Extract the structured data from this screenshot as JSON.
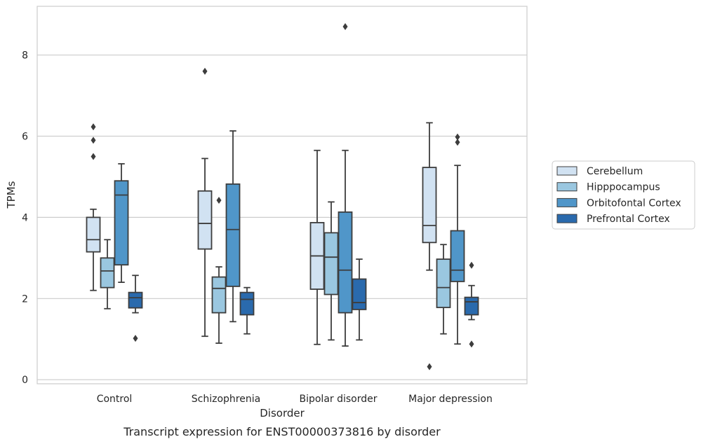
{
  "chart_data": {
    "type": "box",
    "caption": "Transcript expression for ENST00000373816 by disorder",
    "xlabel": "Disorder",
    "ylabel": "TPMs",
    "ylim": [
      -0.1,
      9.2
    ],
    "yticks": [
      0,
      2,
      4,
      6,
      8
    ],
    "grid": true,
    "legend_position": "right",
    "categories": [
      "Control",
      "Schizophrenia",
      "Bipolar disorder",
      "Major depression"
    ],
    "series": [
      {
        "name": "Cerebellum",
        "color": "#d1e2f2",
        "boxes": [
          {
            "min": 2.2,
            "q1": 3.15,
            "median": 3.45,
            "q3": 4.0,
            "max": 4.2,
            "outliers": [
              5.5,
              5.9,
              6.23
            ]
          },
          {
            "min": 1.07,
            "q1": 3.22,
            "median": 3.85,
            "q3": 4.65,
            "max": 5.45,
            "outliers": [
              7.6
            ]
          },
          {
            "min": 0.87,
            "q1": 2.23,
            "median": 3.05,
            "q3": 3.87,
            "max": 5.65,
            "outliers": []
          },
          {
            "min": 2.7,
            "q1": 3.38,
            "median": 3.8,
            "q3": 5.23,
            "max": 6.33,
            "outliers": [
              0.32
            ]
          }
        ]
      },
      {
        "name": "Hipppocampus",
        "color": "#9ac7e0",
        "boxes": [
          {
            "min": 1.75,
            "q1": 2.27,
            "median": 2.68,
            "q3": 3.0,
            "max": 3.45,
            "outliers": []
          },
          {
            "min": 0.9,
            "q1": 1.65,
            "median": 2.25,
            "q3": 2.53,
            "max": 2.78,
            "outliers": [
              4.42
            ]
          },
          {
            "min": 0.98,
            "q1": 2.1,
            "median": 3.02,
            "q3": 3.62,
            "max": 4.38,
            "outliers": []
          },
          {
            "min": 1.13,
            "q1": 1.78,
            "median": 2.27,
            "q3": 2.97,
            "max": 3.33,
            "outliers": []
          }
        ]
      },
      {
        "name": "Orbitofontal Cortex",
        "color": "#5096c9",
        "boxes": [
          {
            "min": 2.4,
            "q1": 2.83,
            "median": 4.55,
            "q3": 4.9,
            "max": 5.32,
            "outliers": []
          },
          {
            "min": 1.43,
            "q1": 2.3,
            "median": 3.7,
            "q3": 4.82,
            "max": 6.13,
            "outliers": []
          },
          {
            "min": 0.83,
            "q1": 1.65,
            "median": 2.7,
            "q3": 4.13,
            "max": 5.65,
            "outliers": [
              8.7
            ]
          },
          {
            "min": 0.88,
            "q1": 2.42,
            "median": 2.7,
            "q3": 3.67,
            "max": 5.28,
            "outliers": [
              5.85,
              5.98
            ]
          }
        ]
      },
      {
        "name": "Prefrontal Cortex",
        "color": "#2a6aad",
        "boxes": [
          {
            "min": 1.65,
            "q1": 1.77,
            "median": 2.02,
            "q3": 2.15,
            "max": 2.57,
            "outliers": [
              1.02
            ]
          },
          {
            "min": 1.13,
            "q1": 1.6,
            "median": 1.98,
            "q3": 2.15,
            "max": 2.27,
            "outliers": []
          },
          {
            "min": 0.98,
            "q1": 1.73,
            "median": 1.9,
            "q3": 2.48,
            "max": 2.97,
            "outliers": []
          },
          {
            "min": 1.48,
            "q1": 1.6,
            "median": 1.92,
            "q3": 2.03,
            "max": 2.32,
            "outliers": [
              0.88,
              2.82
            ]
          }
        ]
      }
    ]
  }
}
